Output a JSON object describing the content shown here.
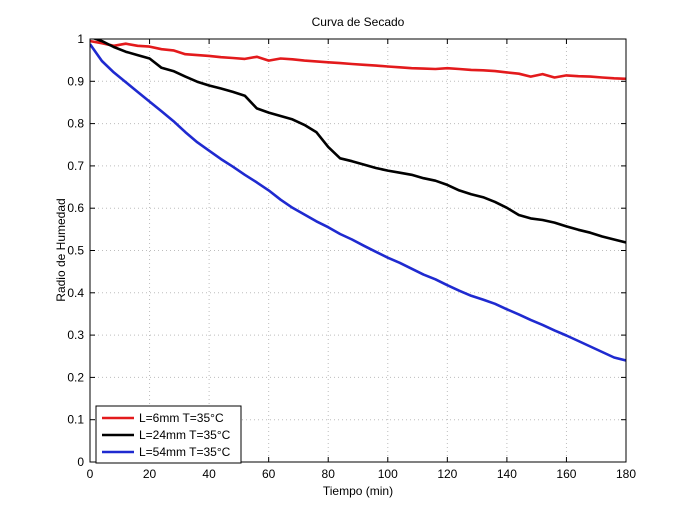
{
  "chart_data": {
    "type": "line",
    "title": "Curva de Secado",
    "xlabel": "Tiempo (min)",
    "ylabel": "Radio de Humedad",
    "xlim": [
      0,
      180
    ],
    "ylim": [
      0,
      1
    ],
    "xticks": [
      0,
      20,
      40,
      60,
      80,
      100,
      120,
      140,
      160,
      180
    ],
    "yticks": [
      0,
      0.1,
      0.2,
      0.3,
      0.4,
      0.5,
      0.6,
      0.7,
      0.8,
      0.9,
      1
    ],
    "grid": true,
    "legend_position": "bottom-left",
    "series": [
      {
        "name": "L=6mm T=35°C",
        "color": "#e31a1c",
        "x": [
          0,
          4,
          8,
          12,
          16,
          20,
          24,
          28,
          32,
          36,
          40,
          44,
          48,
          52,
          56,
          60,
          64,
          68,
          72,
          76,
          80,
          84,
          88,
          92,
          96,
          100,
          104,
          108,
          112,
          116,
          120,
          124,
          128,
          132,
          136,
          140,
          144,
          148,
          152,
          156,
          160,
          164,
          168,
          172,
          176,
          180
        ],
        "y": [
          0.995,
          0.99,
          0.984,
          0.989,
          0.984,
          0.982,
          0.976,
          0.973,
          0.964,
          0.962,
          0.96,
          0.957,
          0.955,
          0.953,
          0.958,
          0.949,
          0.954,
          0.952,
          0.949,
          0.947,
          0.945,
          0.943,
          0.941,
          0.939,
          0.937,
          0.935,
          0.933,
          0.931,
          0.93,
          0.929,
          0.931,
          0.929,
          0.927,
          0.926,
          0.924,
          0.921,
          0.918,
          0.911,
          0.917,
          0.909,
          0.914,
          0.912,
          0.911,
          0.909,
          0.907,
          0.906
        ]
      },
      {
        "name": "L=24mm T=35°C",
        "color": "#000000",
        "x": [
          0,
          4,
          8,
          12,
          16,
          20,
          24,
          28,
          32,
          36,
          40,
          44,
          48,
          52,
          56,
          60,
          64,
          68,
          72,
          76,
          80,
          84,
          88,
          92,
          96,
          100,
          104,
          108,
          112,
          116,
          120,
          124,
          128,
          132,
          136,
          140,
          144,
          148,
          152,
          156,
          160,
          164,
          168,
          172,
          176,
          180
        ],
        "y": [
          1.005,
          0.995,
          0.981,
          0.97,
          0.962,
          0.954,
          0.932,
          0.924,
          0.911,
          0.899,
          0.89,
          0.883,
          0.875,
          0.866,
          0.836,
          0.826,
          0.818,
          0.81,
          0.797,
          0.78,
          0.745,
          0.718,
          0.711,
          0.703,
          0.695,
          0.689,
          0.684,
          0.679,
          0.671,
          0.665,
          0.655,
          0.642,
          0.633,
          0.626,
          0.615,
          0.601,
          0.584,
          0.576,
          0.572,
          0.566,
          0.557,
          0.549,
          0.542,
          0.533,
          0.526,
          0.519
        ]
      },
      {
        "name": "L=54mm T=35°C",
        "color": "#1f2ad0",
        "x": [
          0,
          4,
          8,
          12,
          16,
          20,
          24,
          28,
          32,
          36,
          40,
          44,
          48,
          52,
          56,
          60,
          64,
          68,
          72,
          76,
          80,
          84,
          88,
          92,
          96,
          100,
          104,
          108,
          112,
          116,
          120,
          124,
          128,
          132,
          136,
          140,
          144,
          148,
          152,
          156,
          160,
          164,
          168,
          172,
          176,
          180
        ],
        "y": [
          0.988,
          0.948,
          0.921,
          0.898,
          0.875,
          0.852,
          0.829,
          0.806,
          0.78,
          0.756,
          0.736,
          0.716,
          0.698,
          0.679,
          0.661,
          0.642,
          0.62,
          0.601,
          0.585,
          0.569,
          0.555,
          0.539,
          0.526,
          0.511,
          0.497,
          0.483,
          0.471,
          0.457,
          0.443,
          0.432,
          0.418,
          0.405,
          0.393,
          0.384,
          0.374,
          0.361,
          0.349,
          0.336,
          0.324,
          0.311,
          0.299,
          0.286,
          0.273,
          0.26,
          0.247,
          0.24
        ]
      }
    ]
  }
}
